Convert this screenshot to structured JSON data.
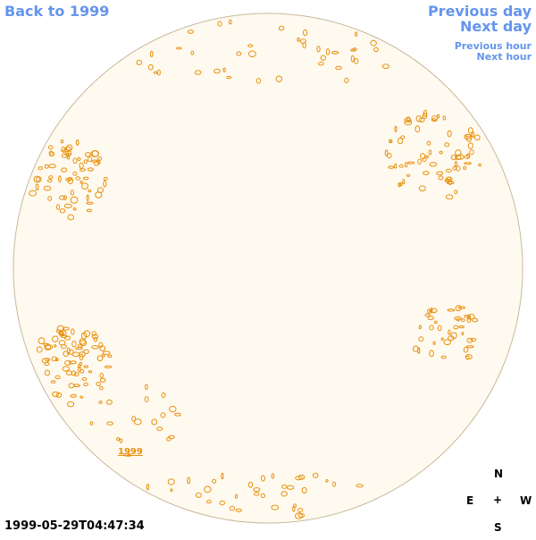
{
  "nav": {
    "back_label": "Back to 1999",
    "prev_day_label": "Previous day",
    "next_day_label": "Next day",
    "prev_hour_label": "Previous hour",
    "next_hour_label": "Next hour"
  },
  "disk": {
    "year_link": "1999",
    "background_color": "#fffaf0",
    "limb_color": "#c8b89a",
    "contour_color": "#e8900c"
  },
  "timestamp": "1999-05-29T04:47:34",
  "compass": {
    "north": "N",
    "east": "E",
    "center": "+",
    "west": "W",
    "south": "S"
  }
}
